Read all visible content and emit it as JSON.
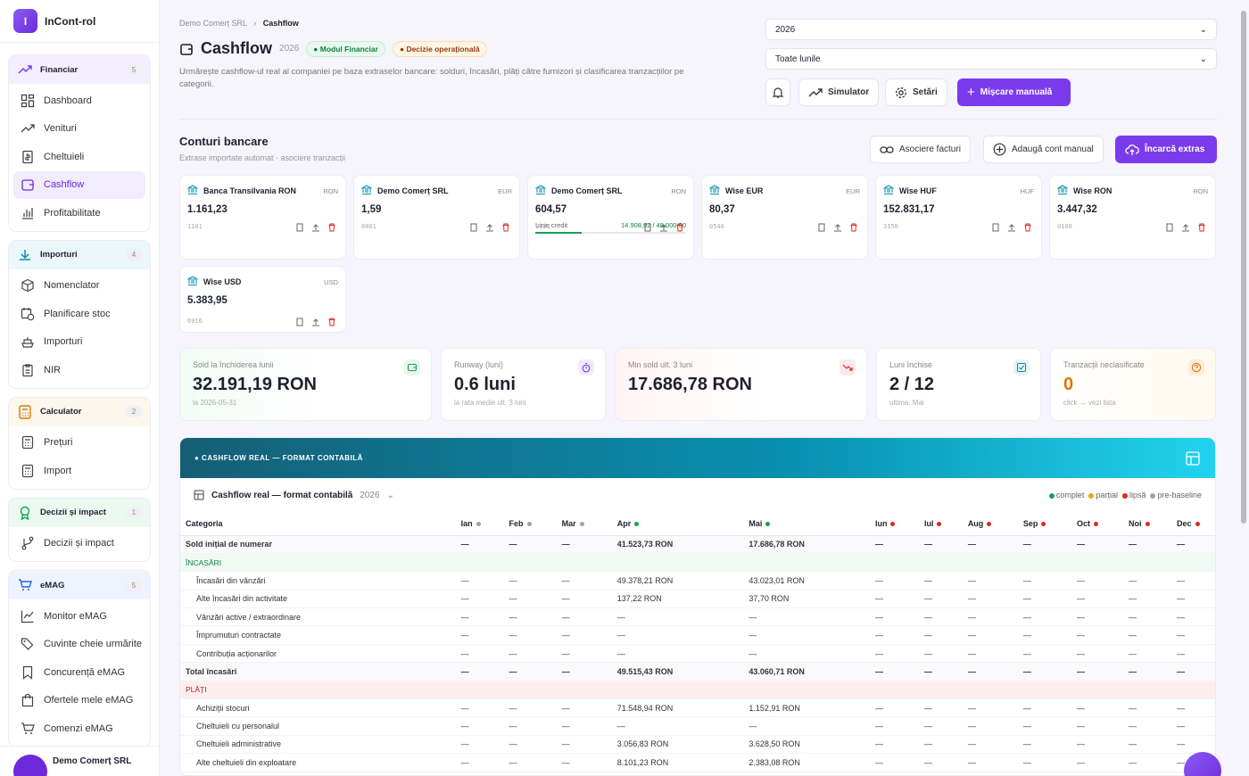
{
  "brand": {
    "logo": "I",
    "name": "InCont-rol"
  },
  "sidebar": {
    "groups": [
      {
        "title": "Financiar",
        "count": "5",
        "icon": "trending-up-icon",
        "items": [
          "Dashboard",
          "Venituri",
          "Cheltuieli",
          "Cashflow",
          "Profitabilitate"
        ]
      },
      {
        "title": "Importuri",
        "count": "4",
        "icon": "download-icon",
        "items": [
          "Nomenclator",
          "Planificare stoc",
          "Importuri",
          "NIR"
        ]
      },
      {
        "title": "Calculator",
        "count": "2",
        "icon": "calculator-icon",
        "items": [
          "Prețuri",
          "Import"
        ]
      },
      {
        "title": "Decizii și impact",
        "count": "1",
        "icon": "award-icon",
        "items": [
          "Decizii și impact"
        ]
      },
      {
        "title": "eMAG",
        "count": "5",
        "icon": "cart-icon",
        "items": [
          "Monitor eMAG",
          "Cuvinte cheie urmărite",
          "Concurență eMAG",
          "Ofertele mele eMAG",
          "Comenzi eMAG"
        ]
      }
    ],
    "active": "Cashflow",
    "company": "Demo Comerț SRL"
  },
  "breadcrumb": {
    "parent": "Demo Comerț SRL",
    "current": "Cashflow"
  },
  "header": {
    "title": "Cashflow",
    "year": "2026",
    "badge_module": "Modul Financiar",
    "badge_decisions": "Decizie operațională",
    "description": "Urmărește cashflow-ul real al companiei pe baza extraselor bancare: solduri, încasări, plăți către furnizori și clasificarea tranzacțiilor pe categorii."
  },
  "filters": {
    "year": "2026",
    "month": "Toate lunile"
  },
  "toolbar": {
    "simulator": "Simulator",
    "settings": "Setări",
    "manual": "Mișcare manuală"
  },
  "accounts_section": {
    "title": "Conturi bancare",
    "subtitle": "Extrase importate automat · asociere tranzacții",
    "btn_assoc": "Asociere facturi",
    "btn_add": "Adaugă cont manual",
    "btn_upload": "Încarcă extras"
  },
  "accounts": [
    {
      "name": "Banca Transilvania RON",
      "currency": "RON",
      "balance": "1.161,23",
      "code": "1101"
    },
    {
      "name": "Demo Comerț SRL",
      "currency": "EUR",
      "balance": "1,59",
      "code": "0001"
    },
    {
      "name": "Demo Comerț SRL",
      "currency": "RON",
      "balance": "604,57",
      "code": "0001",
      "credit_label": "Linie credit",
      "credit_value": "14.908,92 / 48.000,00",
      "credit_used": 0.31
    },
    {
      "name": "Wise EUR",
      "currency": "EUR",
      "balance": "80,37",
      "code": "0546"
    },
    {
      "name": "Wise HUF",
      "currency": "HUF",
      "balance": "152.831,17",
      "code": "3150"
    },
    {
      "name": "Wise RON",
      "currency": "RON",
      "balance": "3.447,32",
      "code": "0100"
    },
    {
      "name": "Wise USD",
      "currency": "USD",
      "balance": "5.383,95",
      "code": "6916"
    }
  ],
  "kpis": [
    {
      "label": "Sold la închiderea lunii",
      "value": "32.191,19 RON",
      "sub": "la 2026-05-31",
      "icon": "wallet-icon",
      "color": "#16a34a"
    },
    {
      "label": "Runway (luni)",
      "value": "0.6 luni",
      "sub": "la rata medie ult. 3 luni",
      "icon": "timer-icon",
      "color": "#7c3aed"
    },
    {
      "label": "Min sold ult. 3 luni",
      "value": "17.686,78 RON",
      "sub": "",
      "icon": "trend-down-icon",
      "color": "#dc2626"
    },
    {
      "label": "Luni închise",
      "value": "2 / 12",
      "sub": "ultima: Mai",
      "icon": "check-square-icon",
      "color": "#0891b2"
    },
    {
      "label": "Tranzacții neclasificate",
      "value": "0",
      "sub": "click → vezi lista",
      "icon": "help-icon",
      "color": "#d97706"
    }
  ],
  "table": {
    "banner": "● CASHFLOW REAL — FORMAT CONTABILĂ",
    "title": "Cashflow real — format contabilă",
    "year": "2026",
    "legend": [
      {
        "label": "complet",
        "color": "#16a34a"
      },
      {
        "label": "parțial",
        "color": "#f59e0b"
      },
      {
        "label": "lipsă",
        "color": "#dc2626"
      },
      {
        "label": "pre-baseline",
        "color": "#9ca3af"
      }
    ],
    "category_header": "Categoria",
    "months": [
      {
        "label": "Ian",
        "status": "#9ca3af"
      },
      {
        "label": "Feb",
        "status": "#9ca3af"
      },
      {
        "label": "Mar",
        "status": "#9ca3af"
      },
      {
        "label": "Apr",
        "status": "#16a34a"
      },
      {
        "label": "Mai",
        "status": "#16a34a"
      },
      {
        "label": "Iun",
        "status": "#dc2626"
      },
      {
        "label": "Iul",
        "status": "#dc2626"
      },
      {
        "label": "Aug",
        "status": "#dc2626"
      },
      {
        "label": "Sep",
        "status": "#dc2626"
      },
      {
        "label": "Oct",
        "status": "#dc2626"
      },
      {
        "label": "Noi",
        "status": "#dc2626"
      },
      {
        "label": "Dec",
        "status": "#dc2626"
      }
    ],
    "rows": [
      {
        "type": "bold",
        "label": "Sold inițial de numerar",
        "apr": "41.523,73 RON",
        "mai": "17.686,78 RON"
      },
      {
        "type": "sect-g",
        "label": "ÎNCASĂRI"
      },
      {
        "type": "row",
        "label": "Încasări din vânzări",
        "apr": "49.378,21 RON",
        "mai": "43.023,01 RON"
      },
      {
        "type": "row",
        "label": "Alte încasări din activitate",
        "apr": "137,22 RON",
        "mai": "37,70 RON"
      },
      {
        "type": "row",
        "label": "Vânzări active / extraordinare",
        "apr": "—",
        "mai": "—"
      },
      {
        "type": "row",
        "label": "Împrumuturi contractate",
        "apr": "—",
        "mai": "—"
      },
      {
        "type": "row",
        "label": "Contribuția acționarilor",
        "apr": "—",
        "mai": "—"
      },
      {
        "type": "bold",
        "label": "Total încasări",
        "apr": "49.515,43 RON",
        "mai": "43.060,71 RON"
      },
      {
        "type": "sect-r",
        "label": "PLĂȚI"
      },
      {
        "type": "row",
        "label": "Achiziții stocuri",
        "apr": "71.548,94 RON",
        "mai": "1.152,91 RON"
      },
      {
        "type": "row",
        "label": "Cheltuieli cu personalul",
        "apr": "—",
        "mai": "—"
      },
      {
        "type": "row",
        "label": "Cheltuieli administrative",
        "apr": "3.056,83 RON",
        "mai": "3.628,50 RON"
      },
      {
        "type": "row",
        "label": "Alte cheltuieli din exploatare",
        "apr": "8.101,23 RON",
        "mai": "2.383,08 RON"
      }
    ],
    "empty": "—"
  }
}
